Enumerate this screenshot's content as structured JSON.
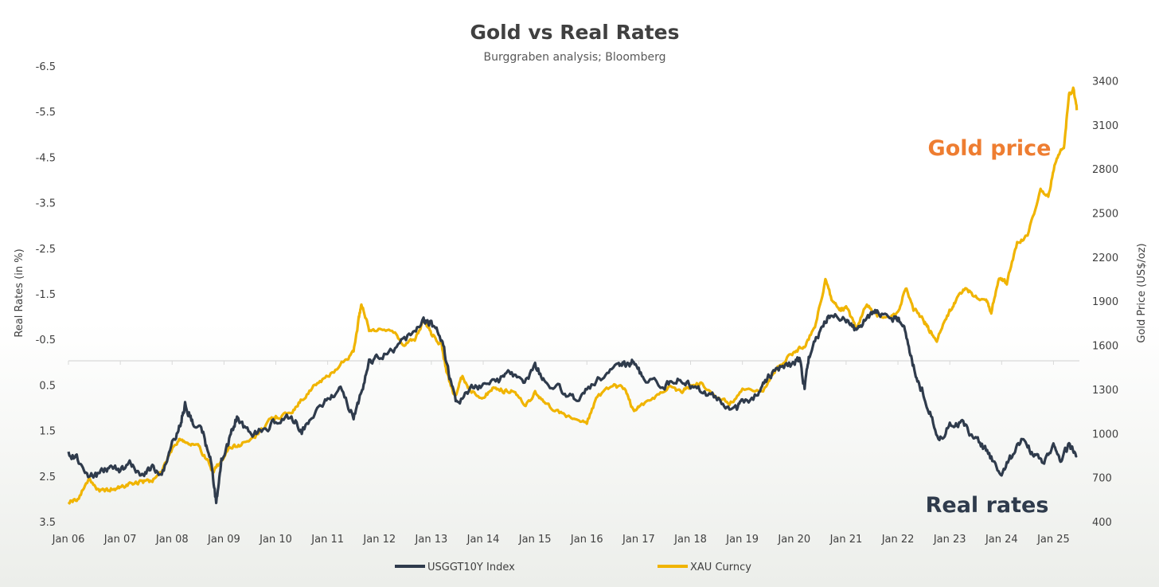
{
  "chart_data": {
    "type": "line",
    "title": "Gold vs Real Rates",
    "subtitle": "Burggraben analysis; Bloomberg",
    "ylabel_left": "Real Rates (in %)",
    "ylabel_right": "Gold Price (US$/oz)",
    "left_axis_inverted": true,
    "ylim_left": [
      3.5,
      -6.5
    ],
    "ylim_right": [
      400,
      3500
    ],
    "yticks_left": [
      "-6.5",
      "-5.5",
      "-4.5",
      "-3.5",
      "-2.5",
      "-1.5",
      "-0.5",
      "0.5",
      "1.5",
      "2.5",
      "3.5"
    ],
    "yticks_right": [
      "3400",
      "3100",
      "2800",
      "2500",
      "2200",
      "1900",
      "1600",
      "1300",
      "1000",
      "700",
      "400"
    ],
    "xticks": [
      "Jan 06",
      "Jan 07",
      "Jan 08",
      "Jan 09",
      "Jan 10",
      "Jan 11",
      "Jan 12",
      "Jan 13",
      "Jan 14",
      "Jan 15",
      "Jan 16",
      "Jan 17",
      "Jan 18",
      "Jan 19",
      "Jan 20",
      "Jan 21",
      "Jan 22",
      "Jan 23",
      "Jan 24",
      "Jan 25"
    ],
    "x_range": [
      2006.0,
      2025.5
    ],
    "series": [
      {
        "name": "USGGT10Y Index",
        "axis": "left",
        "color": "#2f3b4c",
        "points": [
          [
            2006.0,
            2.0
          ],
          [
            2006.2,
            2.15
          ],
          [
            2006.4,
            2.5
          ],
          [
            2006.6,
            2.45
          ],
          [
            2006.8,
            2.3
          ],
          [
            2007.0,
            2.35
          ],
          [
            2007.2,
            2.25
          ],
          [
            2007.4,
            2.45
          ],
          [
            2007.6,
            2.3
          ],
          [
            2007.8,
            2.5
          ],
          [
            2008.0,
            1.8
          ],
          [
            2008.15,
            1.4
          ],
          [
            2008.25,
            0.9
          ],
          [
            2008.4,
            1.3
          ],
          [
            2008.6,
            1.6
          ],
          [
            2008.75,
            2.2
          ],
          [
            2008.85,
            3.1
          ],
          [
            2008.95,
            2.2
          ],
          [
            2009.1,
            1.7
          ],
          [
            2009.25,
            1.2
          ],
          [
            2009.5,
            1.6
          ],
          [
            2009.75,
            1.5
          ],
          [
            2010.0,
            1.3
          ],
          [
            2010.3,
            1.2
          ],
          [
            2010.5,
            1.5
          ],
          [
            2010.75,
            1.1
          ],
          [
            2011.0,
            0.8
          ],
          [
            2011.25,
            0.6
          ],
          [
            2011.5,
            1.2
          ],
          [
            2011.65,
            0.7
          ],
          [
            2011.8,
            0.0
          ],
          [
            2012.0,
            -0.15
          ],
          [
            2012.3,
            -0.3
          ],
          [
            2012.6,
            -0.6
          ],
          [
            2012.85,
            -0.9
          ],
          [
            2013.0,
            -0.85
          ],
          [
            2013.2,
            -0.5
          ],
          [
            2013.35,
            0.3
          ],
          [
            2013.5,
            0.9
          ],
          [
            2013.75,
            0.6
          ],
          [
            2014.0,
            0.5
          ],
          [
            2014.3,
            0.4
          ],
          [
            2014.5,
            0.2
          ],
          [
            2014.75,
            0.5
          ],
          [
            2015.0,
            0.1
          ],
          [
            2015.2,
            0.4
          ],
          [
            2015.5,
            0.6
          ],
          [
            2015.75,
            0.8
          ],
          [
            2016.0,
            0.6
          ],
          [
            2016.3,
            0.3
          ],
          [
            2016.6,
            0.1
          ],
          [
            2016.75,
            0.05
          ],
          [
            2016.9,
            -0.05
          ],
          [
            2017.1,
            0.4
          ],
          [
            2017.5,
            0.5
          ],
          [
            2017.75,
            0.4
          ],
          [
            2018.0,
            0.5
          ],
          [
            2018.3,
            0.7
          ],
          [
            2018.6,
            0.85
          ],
          [
            2018.85,
            1.05
          ],
          [
            2019.0,
            0.9
          ],
          [
            2019.3,
            0.7
          ],
          [
            2019.5,
            0.3
          ],
          [
            2019.75,
            0.1
          ],
          [
            2020.0,
            0.05
          ],
          [
            2020.1,
            -0.05
          ],
          [
            2020.2,
            0.6
          ],
          [
            2020.3,
            -0.2
          ],
          [
            2020.5,
            -0.7
          ],
          [
            2020.7,
            -1.05
          ],
          [
            2021.0,
            -0.95
          ],
          [
            2021.2,
            -0.7
          ],
          [
            2021.4,
            -0.95
          ],
          [
            2021.6,
            -1.1
          ],
          [
            2021.9,
            -0.95
          ],
          [
            2022.0,
            -1.0
          ],
          [
            2022.15,
            -0.6
          ],
          [
            2022.3,
            0.1
          ],
          [
            2022.45,
            0.6
          ],
          [
            2022.6,
            1.0
          ],
          [
            2022.8,
            1.7
          ],
          [
            2023.0,
            1.4
          ],
          [
            2023.2,
            1.3
          ],
          [
            2023.4,
            1.6
          ],
          [
            2023.6,
            1.8
          ],
          [
            2023.8,
            2.1
          ],
          [
            2024.0,
            2.45
          ],
          [
            2024.2,
            2.05
          ],
          [
            2024.4,
            1.7
          ],
          [
            2024.6,
            2.0
          ],
          [
            2024.8,
            2.2
          ],
          [
            2025.0,
            1.9
          ],
          [
            2025.15,
            2.2
          ],
          [
            2025.3,
            1.8
          ],
          [
            2025.45,
            2.05
          ]
        ]
      },
      {
        "name": "XAU Curncy",
        "axis": "right",
        "color": "#f0b400",
        "points": [
          [
            2006.0,
            540
          ],
          [
            2006.2,
            560
          ],
          [
            2006.4,
            700
          ],
          [
            2006.6,
            600
          ],
          [
            2006.8,
            620
          ],
          [
            2007.0,
            630
          ],
          [
            2007.2,
            660
          ],
          [
            2007.4,
            670
          ],
          [
            2007.6,
            680
          ],
          [
            2007.8,
            740
          ],
          [
            2008.0,
            900
          ],
          [
            2008.15,
            970
          ],
          [
            2008.3,
            930
          ],
          [
            2008.5,
            910
          ],
          [
            2008.65,
            840
          ],
          [
            2008.8,
            730
          ],
          [
            2008.9,
            800
          ],
          [
            2009.1,
            900
          ],
          [
            2009.3,
            920
          ],
          [
            2009.6,
            980
          ],
          [
            2009.9,
            1090
          ],
          [
            2010.0,
            1110
          ],
          [
            2010.3,
            1140
          ],
          [
            2010.5,
            1230
          ],
          [
            2010.75,
            1330
          ],
          [
            2011.0,
            1380
          ],
          [
            2011.3,
            1490
          ],
          [
            2011.5,
            1560
          ],
          [
            2011.6,
            1780
          ],
          [
            2011.65,
            1890
          ],
          [
            2011.8,
            1700
          ],
          [
            2012.0,
            1720
          ],
          [
            2012.3,
            1680
          ],
          [
            2012.5,
            1600
          ],
          [
            2012.7,
            1650
          ],
          [
            2012.85,
            1770
          ],
          [
            2013.0,
            1680
          ],
          [
            2013.2,
            1600
          ],
          [
            2013.3,
            1400
          ],
          [
            2013.45,
            1250
          ],
          [
            2013.6,
            1390
          ],
          [
            2013.75,
            1300
          ],
          [
            2014.0,
            1240
          ],
          [
            2014.2,
            1320
          ],
          [
            2014.4,
            1290
          ],
          [
            2014.6,
            1300
          ],
          [
            2014.8,
            1180
          ],
          [
            2015.0,
            1280
          ],
          [
            2015.2,
            1200
          ],
          [
            2015.5,
            1140
          ],
          [
            2015.75,
            1100
          ],
          [
            2016.0,
            1080
          ],
          [
            2016.2,
            1250
          ],
          [
            2016.5,
            1330
          ],
          [
            2016.75,
            1300
          ],
          [
            2016.9,
            1150
          ],
          [
            2017.0,
            1180
          ],
          [
            2017.3,
            1250
          ],
          [
            2017.6,
            1320
          ],
          [
            2017.8,
            1280
          ],
          [
            2018.0,
            1330
          ],
          [
            2018.2,
            1340
          ],
          [
            2018.5,
            1250
          ],
          [
            2018.75,
            1200
          ],
          [
            2019.0,
            1290
          ],
          [
            2019.4,
            1290
          ],
          [
            2019.6,
            1420
          ],
          [
            2019.8,
            1490
          ],
          [
            2020.0,
            1560
          ],
          [
            2020.2,
            1600
          ],
          [
            2020.4,
            1720
          ],
          [
            2020.6,
            2050
          ],
          [
            2020.75,
            1880
          ],
          [
            2020.9,
            1840
          ],
          [
            2021.0,
            1850
          ],
          [
            2021.2,
            1720
          ],
          [
            2021.4,
            1880
          ],
          [
            2021.6,
            1800
          ],
          [
            2021.8,
            1780
          ],
          [
            2022.0,
            1820
          ],
          [
            2022.15,
            2000
          ],
          [
            2022.3,
            1850
          ],
          [
            2022.5,
            1770
          ],
          [
            2022.6,
            1710
          ],
          [
            2022.75,
            1640
          ],
          [
            2022.95,
            1800
          ],
          [
            2023.1,
            1900
          ],
          [
            2023.3,
            1990
          ],
          [
            2023.5,
            1930
          ],
          [
            2023.7,
            1900
          ],
          [
            2023.8,
            1830
          ],
          [
            2023.95,
            2050
          ],
          [
            2024.1,
            2020
          ],
          [
            2024.3,
            2300
          ],
          [
            2024.5,
            2350
          ],
          [
            2024.75,
            2650
          ],
          [
            2024.9,
            2620
          ],
          [
            2025.05,
            2860
          ],
          [
            2025.2,
            2950
          ],
          [
            2025.3,
            3300
          ],
          [
            2025.38,
            3350
          ],
          [
            2025.45,
            3200
          ]
        ]
      }
    ],
    "annotations": [
      {
        "text": "Gold price",
        "color": "#ee7d31"
      },
      {
        "text": "Real rates",
        "color": "#2f3b4c"
      }
    ],
    "legend_position": "bottom-center",
    "grid": false
  }
}
